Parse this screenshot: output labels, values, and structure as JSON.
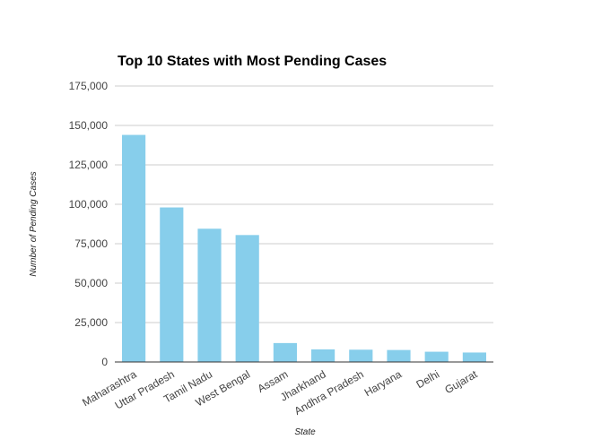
{
  "chart_data": {
    "type": "bar",
    "title": "Top 10 States with Most Pending Cases",
    "xlabel": "State",
    "ylabel": "Number of Pending Cases",
    "categories": [
      "Maharashtra",
      "Uttar Pradesh",
      "Tamil Nadu",
      "West Bengal",
      "Assam",
      "Jharkhand",
      "Andhra Pradesh",
      "Haryana",
      "Delhi",
      "Gujarat"
    ],
    "values": [
      144000,
      98000,
      84500,
      80500,
      12000,
      8000,
      7800,
      7600,
      6500,
      6000
    ],
    "ylim": [
      0,
      175000
    ],
    "yticks": [
      0,
      25000,
      50000,
      75000,
      100000,
      125000,
      150000,
      175000
    ],
    "ytick_labels": [
      "0",
      "25,000",
      "50,000",
      "75,000",
      "100,000",
      "125,000",
      "150,000",
      "175,000"
    ],
    "grid": true,
    "bar_color": "#87CEEB",
    "grid_color": "#cccccc"
  }
}
